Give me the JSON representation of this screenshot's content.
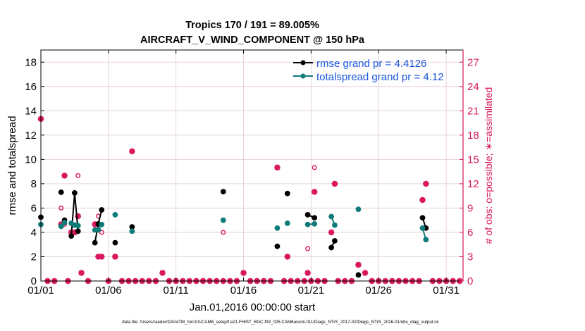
{
  "colors": {
    "rmse": "#000000",
    "spread": "#0f7b7b",
    "obs": "#d9175e",
    "legend_text": "#1a56db",
    "grid": "#e2c8d2",
    "axis": "#000000"
  },
  "chart_data": {
    "type": "line",
    "title_line1": "Tropics 170 / 191 = 89.005%",
    "title_line2": "AIRCRAFT_V_WIND_COMPONENT @ 150 hPa",
    "xlabel": "Jan.01,2016 00:00:00 start",
    "ylabel_left": "rmse and totalspread",
    "ylabel_right": "# of obs: o=possible; ∗=assimilated",
    "footer": "data file: /Users/raeder/DAI/ATM_forcXX/CAM6_setup/f.e21.FHIST_BGC.f09_025.CAM6assim.011/Diags_NTrS_2017-02/Diags_NTrS_2016-01/obs_diag_output.nc",
    "x_axis": {
      "unit": "days since start",
      "range": [
        0,
        31.25
      ],
      "ticks": [
        0,
        5,
        10,
        15,
        20,
        25,
        30
      ],
      "tick_labels": [
        "01/01",
        "01/06",
        "01/11",
        "01/16",
        "01/21",
        "01/26",
        "01/31"
      ]
    },
    "y_left": {
      "range": [
        0,
        19
      ],
      "ticks": [
        0,
        2,
        4,
        6,
        8,
        10,
        12,
        14,
        16,
        18
      ],
      "tick_labels": [
        "0",
        "2",
        "4",
        "6",
        "8",
        "10",
        "12",
        "14",
        "16",
        "18"
      ]
    },
    "y_right": {
      "range": [
        0,
        28.5
      ],
      "ticks": [
        0,
        3,
        6,
        9,
        12,
        15,
        18,
        21,
        24,
        27
      ],
      "tick_labels": [
        "0",
        "3",
        "6",
        "9",
        "12",
        "15",
        "18",
        "21",
        "24",
        "27"
      ]
    },
    "grid": true,
    "legend": {
      "placement": "top-right",
      "entries": [
        {
          "label": "rmse grand pr = 4.4126",
          "series": "rmse"
        },
        {
          "label": "totalspread grand pr = 4.12",
          "series": "totalspread"
        }
      ]
    },
    "series": [
      {
        "name": "rmse",
        "axis": "left",
        "segments": [
          [
            [
              0.0,
              5.25
            ]
          ],
          [
            [
              1.5,
              7.3
            ]
          ],
          [
            [
              1.75,
              5.0
            ]
          ],
          [
            [
              2.25,
              3.7
            ],
            [
              2.5,
              7.25
            ],
            [
              2.75,
              4.1
            ]
          ],
          [
            [
              4.0,
              3.15
            ],
            [
              4.25,
              4.7
            ],
            [
              4.5,
              5.85
            ]
          ],
          [
            [
              5.5,
              3.15
            ]
          ],
          [
            [
              6.75,
              4.45
            ]
          ],
          [
            [
              13.5,
              7.35
            ]
          ],
          [
            [
              17.5,
              2.85
            ]
          ],
          [
            [
              18.25,
              7.2
            ]
          ],
          [
            [
              19.75,
              5.45
            ],
            [
              20.25,
              5.2
            ]
          ],
          [
            [
              21.5,
              2.75
            ],
            [
              21.75,
              3.3
            ]
          ],
          [
            [
              23.5,
              0.5
            ]
          ],
          [
            [
              28.25,
              5.2
            ],
            [
              28.5,
              4.35
            ]
          ]
        ]
      },
      {
        "name": "totalspread",
        "axis": "left",
        "segments": [
          [
            [
              0.0,
              4.65
            ]
          ],
          [
            [
              1.5,
              4.5
            ]
          ],
          [
            [
              1.75,
              4.8
            ]
          ],
          [
            [
              2.25,
              4.75
            ],
            [
              2.5,
              4.6
            ],
            [
              2.75,
              4.55
            ]
          ],
          [
            [
              4.0,
              4.2
            ],
            [
              4.25,
              4.2
            ],
            [
              4.5,
              4.65
            ]
          ],
          [
            [
              5.5,
              5.45
            ]
          ],
          [
            [
              6.75,
              4.1
            ]
          ],
          [
            [
              13.5,
              5.0
            ]
          ],
          [
            [
              17.5,
              4.35
            ]
          ],
          [
            [
              18.25,
              4.75
            ]
          ],
          [
            [
              19.75,
              4.65
            ],
            [
              20.25,
              4.7
            ]
          ],
          [
            [
              21.5,
              5.3
            ],
            [
              21.75,
              4.6
            ]
          ],
          [
            [
              23.5,
              5.9
            ]
          ],
          [
            [
              28.25,
              4.35
            ],
            [
              28.5,
              3.4
            ]
          ]
        ]
      }
    ],
    "obs_possible": [
      [
        0.0,
        20
      ],
      [
        1.5,
        9
      ],
      [
        1.75,
        7
      ],
      [
        2.5,
        6
      ],
      [
        2.75,
        13
      ],
      [
        4.25,
        8
      ],
      [
        4.5,
        6
      ],
      [
        5.5,
        3
      ],
      [
        6.75,
        16
      ],
      [
        13.5,
        6
      ],
      [
        17.5,
        14
      ],
      [
        18.25,
        3
      ],
      [
        19.75,
        4
      ],
      [
        20.25,
        14
      ],
      [
        21.5,
        6
      ],
      [
        21.75,
        12
      ],
      [
        23.5,
        2
      ],
      [
        28.25,
        10
      ],
      [
        28.5,
        12
      ]
    ],
    "obs_assimilated": [
      [
        0.0,
        20
      ],
      [
        1.5,
        7
      ],
      [
        1.75,
        13
      ],
      [
        2.25,
        6
      ],
      [
        2.5,
        6
      ],
      [
        2.75,
        8
      ],
      [
        3.0,
        1
      ],
      [
        4.0,
        7
      ],
      [
        4.25,
        3
      ],
      [
        4.5,
        3
      ],
      [
        5.5,
        3
      ],
      [
        6.75,
        16
      ],
      [
        9.0,
        1
      ],
      [
        13.5,
        0
      ],
      [
        15.0,
        1
      ],
      [
        17.5,
        14
      ],
      [
        18.25,
        3
      ],
      [
        19.75,
        1
      ],
      [
        20.25,
        11
      ],
      [
        21.5,
        6
      ],
      [
        21.75,
        12
      ],
      [
        23.5,
        2
      ],
      [
        24.0,
        1
      ],
      [
        28.25,
        10
      ],
      [
        28.5,
        12
      ]
    ]
  }
}
